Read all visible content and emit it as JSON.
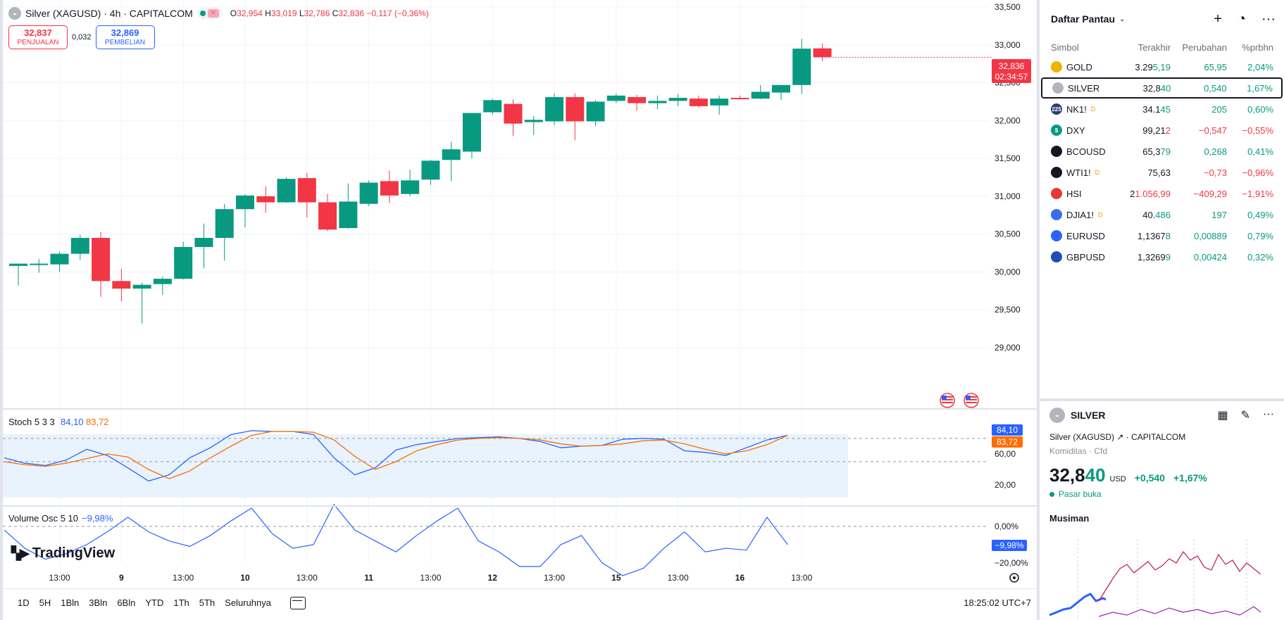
{
  "chart": {
    "symbol_title": "Silver (XAGUSD) · 4h · CAPITALCOM",
    "ohlc": {
      "o_label": "O",
      "o": "32,954",
      "h_label": "H",
      "h": "33,019",
      "l_label": "L",
      "l": "32,786",
      "c_label": "C",
      "c": "32,836",
      "change": "−0,117 (−0,36%)"
    },
    "sell": {
      "price": "32,837",
      "label": "PENJUALAN"
    },
    "buy": {
      "price": "32,869",
      "label": "PEMBELIAN"
    },
    "spread": "0,032",
    "last_price_tag": "32,836",
    "countdown_tag": "02:34:57",
    "stoch_legend": {
      "name": "Stoch 5 3 3",
      "k": "84,10",
      "d": "83,72"
    },
    "vol_legend": {
      "name": "Volume Osc 5 10",
      "value": "−9,98%"
    },
    "stoch_tag_k": "84,10",
    "stoch_tag_d": "83,72",
    "vol_tag": "−9,98%",
    "price_axis": [
      "33,500",
      "33,000",
      "32,500",
      "32,000",
      "31,500",
      "31,000",
      "30,500",
      "30,000",
      "29,500",
      "29,000"
    ],
    "stoch_axis": [
      "60,00",
      "20,00"
    ],
    "vol_axis": [
      "0,00%",
      "−20,00%"
    ],
    "time_axis": [
      "13:00",
      "9",
      "13:00",
      "10",
      "13:00",
      "11",
      "13:00",
      "12",
      "13:00",
      "15",
      "13:00",
      "16",
      "13:00"
    ],
    "logo_text": "TradingView"
  },
  "chart_data": {
    "type": "candlestick",
    "candles": [
      {
        "o": 30080,
        "h": 30110,
        "l": 29820,
        "c": 30110
      },
      {
        "o": 30100,
        "h": 30170,
        "l": 29990,
        "c": 30110
      },
      {
        "o": 30100,
        "h": 30270,
        "l": 30000,
        "c": 30240
      },
      {
        "o": 30240,
        "h": 30490,
        "l": 30160,
        "c": 30450
      },
      {
        "o": 30450,
        "h": 30530,
        "l": 29670,
        "c": 29880
      },
      {
        "o": 29880,
        "h": 30040,
        "l": 29610,
        "c": 29780
      },
      {
        "o": 29780,
        "h": 29860,
        "l": 29320,
        "c": 29830
      },
      {
        "o": 29840,
        "h": 29940,
        "l": 29700,
        "c": 29910
      },
      {
        "o": 29910,
        "h": 30400,
        "l": 29900,
        "c": 30330
      },
      {
        "o": 30330,
        "h": 30640,
        "l": 30050,
        "c": 30450
      },
      {
        "o": 30450,
        "h": 30900,
        "l": 30150,
        "c": 30830
      },
      {
        "o": 30830,
        "h": 31030,
        "l": 30590,
        "c": 31010
      },
      {
        "o": 31000,
        "h": 31130,
        "l": 30780,
        "c": 30920
      },
      {
        "o": 30920,
        "h": 31250,
        "l": 30910,
        "c": 31230
      },
      {
        "o": 31240,
        "h": 31310,
        "l": 30720,
        "c": 30920
      },
      {
        "o": 30920,
        "h": 31030,
        "l": 30540,
        "c": 30560
      },
      {
        "o": 30580,
        "h": 31170,
        "l": 30570,
        "c": 30930
      },
      {
        "o": 30900,
        "h": 31210,
        "l": 30870,
        "c": 31180
      },
      {
        "o": 31200,
        "h": 31340,
        "l": 30910,
        "c": 31010
      },
      {
        "o": 31030,
        "h": 31350,
        "l": 31000,
        "c": 31210
      },
      {
        "o": 31220,
        "h": 31480,
        "l": 31150,
        "c": 31470
      },
      {
        "o": 31480,
        "h": 31720,
        "l": 31200,
        "c": 31620
      },
      {
        "o": 31590,
        "h": 32100,
        "l": 31500,
        "c": 32100
      },
      {
        "o": 32110,
        "h": 32290,
        "l": 32080,
        "c": 32270
      },
      {
        "o": 32220,
        "h": 32280,
        "l": 31800,
        "c": 31960
      },
      {
        "o": 31980,
        "h": 32060,
        "l": 31810,
        "c": 32010
      },
      {
        "o": 31990,
        "h": 32360,
        "l": 31940,
        "c": 32310
      },
      {
        "o": 32310,
        "h": 32360,
        "l": 31740,
        "c": 31990
      },
      {
        "o": 31990,
        "h": 32270,
        "l": 31930,
        "c": 32250
      },
      {
        "o": 32260,
        "h": 32360,
        "l": 32230,
        "c": 32330
      },
      {
        "o": 32310,
        "h": 32340,
        "l": 32130,
        "c": 32230
      },
      {
        "o": 32230,
        "h": 32330,
        "l": 32150,
        "c": 32260
      },
      {
        "o": 32260,
        "h": 32350,
        "l": 32190,
        "c": 32300
      },
      {
        "o": 32290,
        "h": 32330,
        "l": 32170,
        "c": 32190
      },
      {
        "o": 32200,
        "h": 32330,
        "l": 32080,
        "c": 32290
      },
      {
        "o": 32300,
        "h": 32330,
        "l": 32280,
        "c": 32290
      },
      {
        "o": 32290,
        "h": 32470,
        "l": 32280,
        "c": 32380
      },
      {
        "o": 32370,
        "h": 32470,
        "l": 32270,
        "c": 32470
      },
      {
        "o": 32470,
        "h": 33080,
        "l": 32350,
        "c": 32950
      },
      {
        "o": 32954,
        "h": 33019,
        "l": 32786,
        "c": 32836
      }
    ],
    "price_ylim": [
      29000,
      33500
    ],
    "stoch_k": [
      55,
      48,
      45,
      52,
      66,
      58,
      42,
      25,
      33,
      55,
      68,
      85,
      90,
      89,
      89,
      85,
      55,
      33,
      42,
      65,
      72,
      76,
      80,
      81,
      82,
      80,
      76,
      68,
      70,
      71,
      79,
      80,
      79,
      64,
      62,
      58,
      68,
      78,
      84
    ],
    "stoch_d": [
      50,
      46,
      44,
      48,
      54,
      60,
      56,
      40,
      28,
      38,
      55,
      70,
      84,
      89,
      89,
      88,
      78,
      57,
      40,
      50,
      64,
      72,
      78,
      80,
      81,
      80,
      78,
      73,
      70,
      71,
      73,
      77,
      78,
      73,
      66,
      60,
      64,
      72,
      84
    ],
    "vol_osc": [
      -2,
      -12,
      -18,
      -15,
      -10,
      -3,
      5,
      -3,
      -8,
      -11,
      -5,
      3,
      10,
      -4,
      -12,
      -10,
      12,
      -2,
      -8,
      -14,
      -5,
      3,
      10,
      -8,
      -14,
      -22,
      -22,
      -10,
      -5,
      -20,
      -27,
      -23,
      -12,
      -3,
      -14,
      -12,
      -13,
      5,
      -9.98
    ],
    "stoch_ylim": [
      0,
      100
    ],
    "vol_ylim": [
      -22,
      5
    ]
  },
  "watchlist": {
    "title": "Daftar Pantau",
    "columns": {
      "symbol": "Simbol",
      "last": "Terakhir",
      "change": "Perubahan",
      "pct": "%prbhn"
    },
    "rows": [
      {
        "symbol": "GOLD",
        "last_a": "3.29",
        "last_b": "5,19",
        "change": "65,95",
        "pct": "2,04%",
        "dir": "up",
        "icon_color": "#f0b400",
        "icon_text": "",
        "sup": ""
      },
      {
        "symbol": "SILVER",
        "last_a": "32,8",
        "last_b": "40",
        "change": "0,540",
        "pct": "1,67%",
        "dir": "up",
        "icon_color": "#b2b5be",
        "icon_text": "",
        "sup": ""
      },
      {
        "symbol": "NK1!",
        "last_a": "34.1",
        "last_b": "45",
        "change": "205",
        "pct": "0,60%",
        "dir": "up",
        "icon_color": "#2a3f6f",
        "icon_text": "225",
        "sup": "D"
      },
      {
        "symbol": "DXY",
        "last_a": "99,21",
        "last_b": "2",
        "change": "−0,547",
        "pct": "−0,55%",
        "dir": "down",
        "icon_color": "#089981",
        "icon_text": "$",
        "sup": ""
      },
      {
        "symbol": "BCOUSD",
        "last_a": "65,3",
        "last_b": "79",
        "change": "0,268",
        "pct": "0,41%",
        "dir": "up",
        "icon_color": "#131722",
        "icon_text": "",
        "sup": ""
      },
      {
        "symbol": "WTI1!",
        "last_a": "75,63",
        "last_b": "",
        "change": "−0,73",
        "pct": "−0,96%",
        "dir": "down",
        "icon_color": "#131722",
        "icon_text": "",
        "sup": "D"
      },
      {
        "symbol": "HSI",
        "last_a": "2",
        "last_b": "1.056,99",
        "change": "−409,29",
        "pct": "−1,91%",
        "dir": "down",
        "icon_color": "#e53935",
        "icon_text": "",
        "sup": ""
      },
      {
        "symbol": "DJIA1!",
        "last_a": "40.",
        "last_b": "486",
        "change": "197",
        "pct": "0,49%",
        "dir": "up",
        "icon_color": "#3c6df0",
        "icon_text": "",
        "sup": "D"
      },
      {
        "symbol": "EURUSD",
        "last_a": "1,1367",
        "last_b": "8",
        "change": "0,00889",
        "pct": "0,79%",
        "dir": "up",
        "icon_color": "#2962ff",
        "icon_text": "",
        "sup": ""
      },
      {
        "symbol": "GBPUSD",
        "last_a": "1,3269",
        "last_b": "9",
        "change": "0,00424",
        "pct": "0,32%",
        "dir": "up",
        "icon_color": "#1e4fb4",
        "icon_text": "",
        "sup": ""
      }
    ]
  },
  "detail": {
    "symbol": "SILVER",
    "name": "Silver (XAGUSD)",
    "exchange": "CAPITALCOM",
    "category": "Komiditas · Cfd",
    "price_a": "32,8",
    "price_b": "40",
    "currency": "USD",
    "change": "+0,540",
    "pct": "+1,67%",
    "market_status": "Pasar buka",
    "seasonal_title": "Musiman"
  },
  "toolbar": {
    "ranges": [
      "1D",
      "5H",
      "1Bln",
      "3Bln",
      "6Bln",
      "YTD",
      "1Th",
      "5Th",
      "Seluruhnya"
    ],
    "clock": "18:25:02 UTC+7"
  },
  "colors": {
    "up": "#089981",
    "down": "#f23645",
    "stoch_k": "#2962ff",
    "stoch_d": "#ff6d00"
  }
}
